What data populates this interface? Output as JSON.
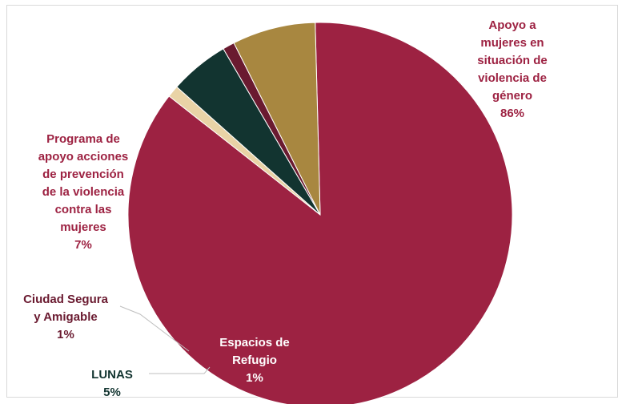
{
  "chart_data": {
    "type": "pie",
    "title": "",
    "slices": [
      {
        "label_lines": [
          "Apoyo a",
          "mujeres en",
          "situación de",
          "violencia de",
          "género"
        ],
        "value": 86,
        "pct_label": "86%",
        "color": "#9D2242",
        "label_color": "#9D2242"
      },
      {
        "label_lines": [
          "Espacios de",
          "Refugio"
        ],
        "value": 1,
        "pct_label": "1%",
        "color": "#E9D3A6",
        "label_color": "#ffffff"
      },
      {
        "label_lines": [
          "LUNAS"
        ],
        "value": 5,
        "pct_label": "5%",
        "color": "#123430",
        "label_color": "#123430"
      },
      {
        "label_lines": [
          "Ciudad Segura",
          "y Amigable"
        ],
        "value": 1,
        "pct_label": "1%",
        "color": "#6A1A30",
        "label_color": "#6A1A30"
      },
      {
        "label_lines": [
          "Programa de",
          "apoyo acciones",
          "de prevención",
          "de la violencia",
          "contra las",
          "mujeres"
        ],
        "value": 7,
        "pct_label": "7%",
        "color": "#A88740",
        "label_color": "#9D2242"
      }
    ]
  }
}
